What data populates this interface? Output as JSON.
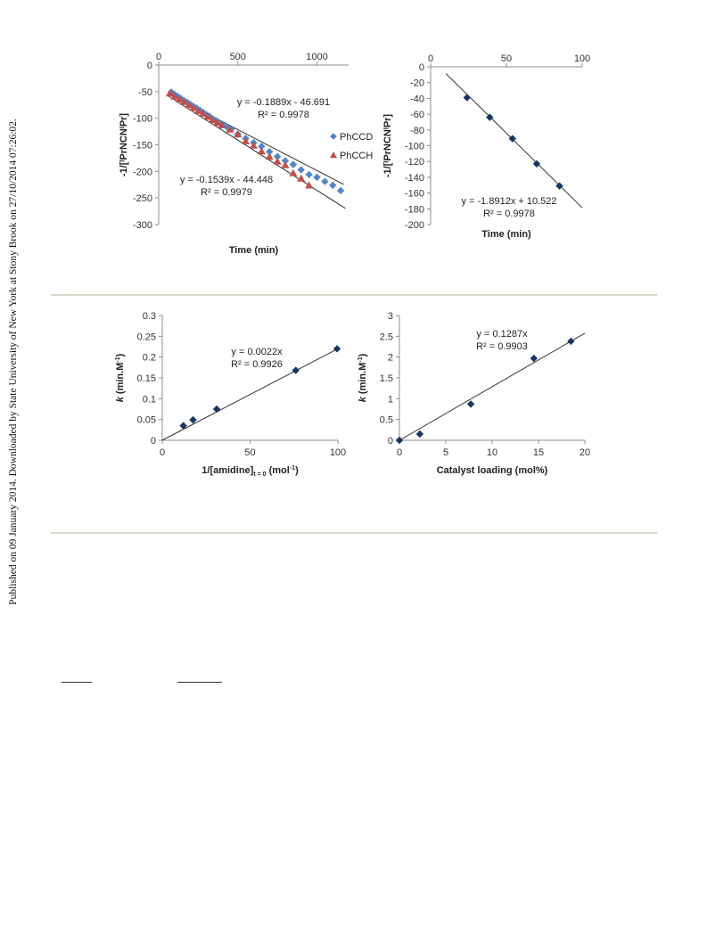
{
  "margin_note": "Published on 09 January 2014. Downloaded by State University of New York at Stony Brook on 27/10/2014 07:26:02.",
  "chart_data": [
    {
      "id": "a",
      "type": "scatter",
      "xlabel": "Time (min)",
      "ylabel": "-1/[ᴵPrNCNᴵPr]",
      "xlim": [
        0,
        1200
      ],
      "ylim": [
        -300,
        0
      ],
      "xticks": [
        "0",
        "500",
        "1000"
      ],
      "yticks": [
        "0",
        "-50",
        "-100",
        "-150",
        "-200",
        "-250",
        "-300"
      ],
      "legend_position": "right",
      "series": [
        {
          "name": "PhCCD",
          "color": "#4f86c6",
          "marker": "diamond",
          "x": [
            80,
            100,
            120,
            140,
            160,
            180,
            200,
            220,
            240,
            260,
            280,
            300,
            320,
            340,
            360,
            380,
            400,
            430,
            460,
            500,
            550,
            600,
            650,
            700,
            750,
            800,
            850,
            900,
            950,
            1000,
            1050,
            1100,
            1150
          ],
          "y": [
            -51,
            -55,
            -59,
            -63,
            -67,
            -70,
            -74,
            -78,
            -81,
            -85,
            -89,
            -93,
            -96,
            -101,
            -104,
            -108,
            -112,
            -116,
            -120,
            -130,
            -138,
            -146,
            -153,
            -163,
            -172,
            -180,
            -187,
            -197,
            -206,
            -211,
            -219,
            -226,
            -236
          ],
          "trendline": {
            "slope": -0.1889,
            "intercept": -46.691,
            "x_range": [
              60,
              1180
            ],
            "equation": "y = -0.1889x - 46.691",
            "r2": "R² = 0.9978"
          }
        },
        {
          "name": "PhCCH",
          "color": "#c0504d",
          "marker": "triangle",
          "x": [
            70,
            100,
            130,
            160,
            190,
            220,
            250,
            280,
            310,
            340,
            370,
            400,
            450,
            500,
            550,
            600,
            650,
            700,
            750,
            800,
            850,
            900,
            950
          ],
          "y": [
            -53,
            -59,
            -64,
            -69,
            -75,
            -80,
            -86,
            -91,
            -97,
            -103,
            -108,
            -113,
            -121,
            -130,
            -143,
            -151,
            -162,
            -172,
            -181,
            -188,
            -203,
            -213,
            -226
          ],
          "trendline": {
            "slope": -0.1539,
            "intercept": -44.448,
            "x_range": [
              60,
              1170
            ],
            "equation": "y = -0.1539x - 44.448",
            "r2": "R² = 0.9979"
          }
        }
      ]
    },
    {
      "id": "b",
      "type": "scatter",
      "xlabel": "Time (min)",
      "ylabel": "-1/[ᴵPrNCNᴵPr]",
      "xlim": [
        0,
        100
      ],
      "ylim": [
        -200,
        0
      ],
      "xticks": [
        "0",
        "50",
        "100"
      ],
      "yticks": [
        "0",
        "-20",
        "-40",
        "-60",
        "-80",
        "-100",
        "-120",
        "-140",
        "-160",
        "-180",
        "-200"
      ],
      "series": [
        {
          "name": "",
          "color": "#17375e",
          "marker": "diamond",
          "x": [
            24,
            39,
            54,
            70,
            85
          ],
          "y": [
            -39,
            -64,
            -91,
            -123,
            -151
          ],
          "trendline": {
            "slope": -1.8912,
            "intercept": 10.522,
            "x_range": [
              10,
              100
            ],
            "equation": "y = -1.8912x + 10.522",
            "r2": "R² = 0.9978"
          }
        }
      ]
    },
    {
      "id": "c",
      "type": "scatter",
      "xlabel": "1/[amidine]",
      "xlabel_sub": "t = 0",
      "xlabel_tail": "  (mol",
      "xlabel_sup": "-1",
      "xlabel_end": ")",
      "ylabel": "k",
      "ylabel_tail": " (min.M",
      "ylabel_sup": "-1",
      "ylabel_end": ")",
      "xlim": [
        0,
        100
      ],
      "ylim": [
        0,
        0.3
      ],
      "xticks": [
        "0",
        "50",
        "100"
      ],
      "yticks": [
        "0",
        "0.05",
        "0.1",
        "0.15",
        "0.2",
        "0.25",
        "0.3"
      ],
      "series": [
        {
          "name": "",
          "color": "#17375e",
          "marker": "diamond",
          "x": [
            12,
            17.5,
            31,
            76,
            99.5
          ],
          "y": [
            0.035,
            0.049,
            0.075,
            0.168,
            0.22
          ],
          "trendline": {
            "slope": 0.0022,
            "intercept": 0,
            "x_range": [
              0,
              100
            ],
            "equation": "y = 0.0022x",
            "r2": "R² = 0.9926"
          }
        }
      ]
    },
    {
      "id": "d",
      "type": "scatter",
      "xlabel": "Catalyst loading (mol%)",
      "ylabel": "k",
      "ylabel_tail": " (min.M",
      "ylabel_sup": "-1",
      "ylabel_end": ")",
      "xlim": [
        0,
        20
      ],
      "ylim": [
        0,
        3
      ],
      "xticks": [
        "0",
        "5",
        "10",
        "15",
        "20"
      ],
      "yticks": [
        "0",
        "0.5",
        "1",
        "1.5",
        "2",
        "2.5",
        "3"
      ],
      "series": [
        {
          "name": "",
          "color": "#17375e",
          "marker": "diamond",
          "x": [
            0,
            2.2,
            7.7,
            14.5,
            18.5
          ],
          "y": [
            0,
            0.15,
            0.87,
            1.97,
            2.38
          ],
          "trendline": {
            "slope": 0.1287,
            "intercept": 0,
            "x_range": [
              0,
              20
            ],
            "equation": "y = 0.1287x",
            "r2": "R² = 0.9903"
          }
        }
      ]
    }
  ]
}
